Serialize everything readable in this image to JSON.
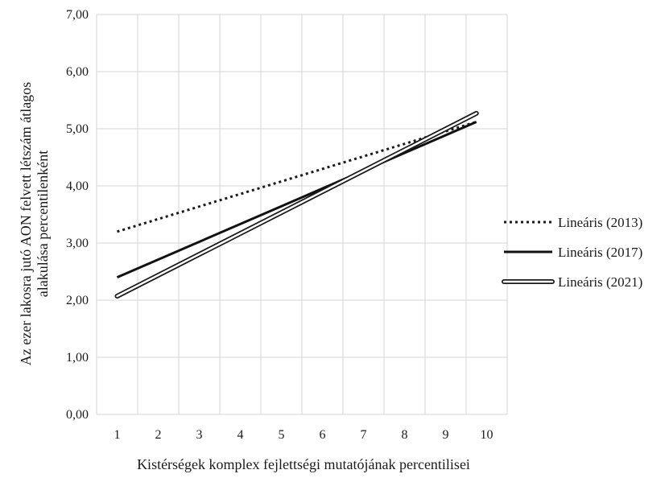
{
  "chart_data": {
    "type": "line",
    "title": "",
    "xlabel": "Kistérségek komplex fejlettségi mutatójának percentilisei",
    "ylabel_lines": [
      "Az ezer lakosra jutó AON felvett létszám átlagos",
      "alakulása percentilenként"
    ],
    "x_ticks": [
      1,
      2,
      3,
      4,
      5,
      6,
      7,
      8,
      9,
      10
    ],
    "x_tick_labels": [
      "1",
      "2",
      "3",
      "4",
      "5",
      "6",
      "7",
      "8",
      "9",
      "10"
    ],
    "xlim": [
      0.5,
      10.5
    ],
    "y_ticks": [
      0,
      1,
      2,
      3,
      4,
      5,
      6,
      7
    ],
    "y_tick_labels": [
      "0,00",
      "1,00",
      "2,00",
      "3,00",
      "4,00",
      "5,00",
      "6,00",
      "7,00"
    ],
    "ylim": [
      0,
      7
    ],
    "grid": true,
    "legend_position": "right",
    "series": [
      {
        "name": "Lineáris (2013)",
        "style": "dotted",
        "x": [
          1,
          9.75
        ],
        "y": [
          3.2,
          5.12
        ]
      },
      {
        "name": "Lineáris (2017)",
        "style": "solid",
        "x": [
          1,
          9.75
        ],
        "y": [
          2.4,
          5.12
        ]
      },
      {
        "name": "Lineáris (2021)",
        "style": "double",
        "x": [
          1,
          9.75
        ],
        "y": [
          2.07,
          5.27
        ]
      }
    ]
  }
}
